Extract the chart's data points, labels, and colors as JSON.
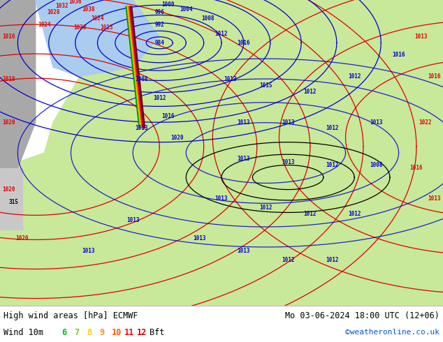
{
  "title_left": "High wind areas [hPa] ECMWF",
  "title_right": "Mo 03-06-2024 18:00 UTC (12+06)",
  "legend_label": "Wind 10m",
  "bft_label": "Bft",
  "bft_values": [
    "6",
    "7",
    "8",
    "9",
    "10",
    "11",
    "12"
  ],
  "bft_colors": [
    "#00bb00",
    "#88cc00",
    "#ffcc00",
    "#ff9900",
    "#ff5500",
    "#ff0000",
    "#cc0000"
  ],
  "watermark": "©weatheronline.co.uk",
  "watermark_color": "#0055cc",
  "legend_bg": "#f0f0f0",
  "fig_width": 6.34,
  "fig_height": 4.9,
  "dpi": 100,
  "map_land_color": "#c8e89a",
  "map_sea_color": "#aaccee",
  "map_gray_color": "#a8a8a8",
  "map_light_gray": "#c8c8c8",
  "isobar_red": "#dd0000",
  "isobar_blue": "#0000cc",
  "isobar_black": "#000000",
  "isobar_lw": 0.9,
  "label_fontsize": 5.5
}
